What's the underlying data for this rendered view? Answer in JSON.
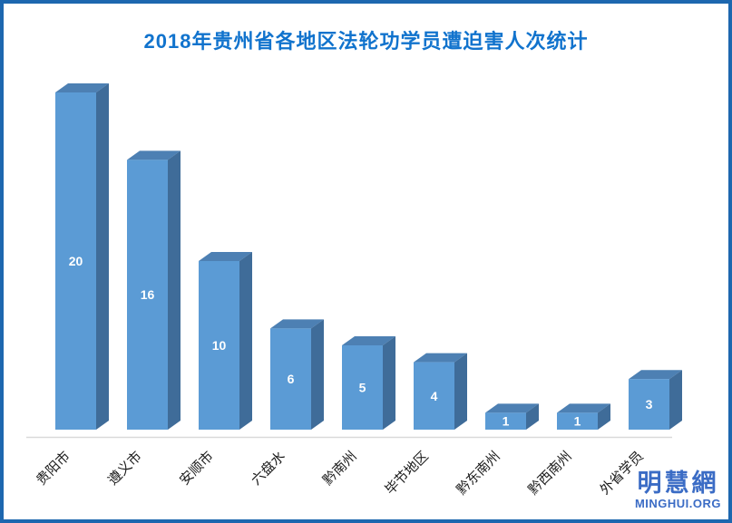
{
  "title": "2018年贵州省各地区法轮功学员遭迫害人次统计",
  "logo": {
    "name": "明慧網",
    "domain": "MINGHUI.ORG"
  },
  "colors": {
    "frame_border": "#1d67af",
    "title_text": "#1173cd",
    "bar_front": "#5b9bd5",
    "bar_top": "#4d80b3",
    "bar_side": "#3f6c99",
    "axis_line": "#d9d9d9",
    "value_label": "#ffffff",
    "category_label": "#1a1a1a",
    "logo_text": "#3b6cc5"
  },
  "chart_data": {
    "type": "bar",
    "style": "3d-column",
    "title": "2018年贵州省各地区法轮功学员遭迫害人次统计",
    "categories": [
      "贵阳市",
      "遵义市",
      "安顺市",
      "六盘水",
      "黔南州",
      "毕节地区",
      "黔东南州",
      "黔西南州",
      "外省学员"
    ],
    "values": [
      20,
      16,
      10,
      6,
      5,
      4,
      1,
      1,
      3
    ],
    "xlabel": "",
    "ylabel": "",
    "ylim": [
      0,
      20
    ],
    "grid": false,
    "legend": false,
    "y_axis_labels_visible": false,
    "data_labels_position": "inside-center",
    "category_label_rotation_deg": 45
  }
}
